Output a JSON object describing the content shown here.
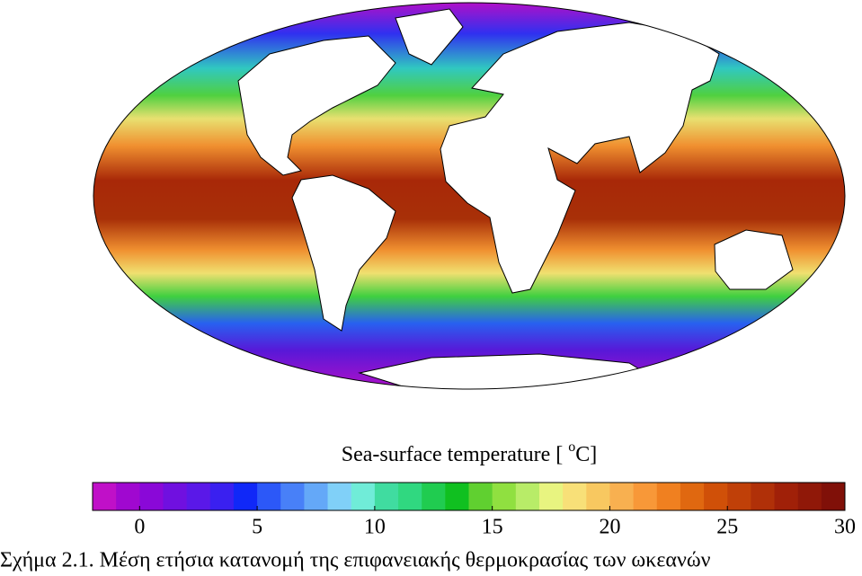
{
  "colorbar": {
    "label": {
      "main": "Sea-surface temperature [ ",
      "sup": "o",
      "end": "C]"
    },
    "lim": [
      -2,
      30
    ],
    "ticks": [
      0,
      5,
      10,
      15,
      20,
      25,
      30
    ],
    "colors": [
      "#c010c8",
      "#a008d0",
      "#8a08d8",
      "#7010e0",
      "#5a18e8",
      "#3a20f0",
      "#1028f8",
      "#2c58f8",
      "#4880f8",
      "#64a8f8",
      "#80d0f8",
      "#70ecd8",
      "#40dca0",
      "#30d880",
      "#20cc50",
      "#10c020",
      "#60d030",
      "#90e040",
      "#b8ec68",
      "#e8f480",
      "#f8e078",
      "#f8c860",
      "#f8b050",
      "#f89838",
      "#f08020",
      "#e06810",
      "#d05008",
      "#c04008",
      "#b03008",
      "#a02008",
      "#901808",
      "#801008"
    ]
  },
  "caption": "Σχήμα 2.1. Μέση ετήσια κατανομή της επιφανειακής θερμοκρασίας των ωκεανών"
}
